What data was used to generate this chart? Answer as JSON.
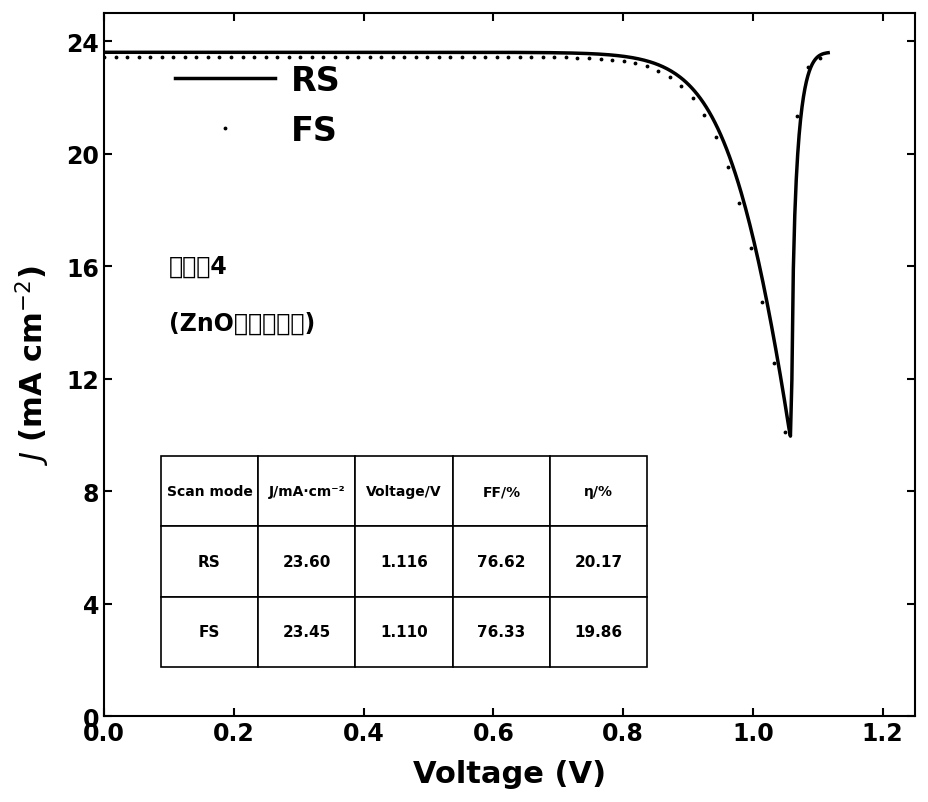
{
  "title": "",
  "xlabel": "Voltage (V)",
  "xlim": [
    0.0,
    1.25
  ],
  "ylim": [
    0,
    25
  ],
  "yticks": [
    0,
    4,
    8,
    12,
    16,
    20,
    24
  ],
  "xticks": [
    0.0,
    0.2,
    0.4,
    0.6,
    0.8,
    1.0,
    1.2
  ],
  "RS_Jsc": 23.6,
  "RS_Voc": 1.116,
  "RS_FF": 76.62,
  "RS_eta": 20.17,
  "FS_Jsc": 23.45,
  "FS_Voc": 1.11,
  "FS_FF": 76.33,
  "FS_eta": 19.86,
  "annotation_line1": "实施入4",
  "annotation_line2": "(ZnO经硫脺处理)",
  "bg_color": "#ffffff",
  "line_color": "#000000",
  "table_col_labels": [
    "Scan mode",
    "J/mA·cm⁻²",
    "Voltage/V",
    "FF/%",
    "η/%"
  ],
  "table_row1": [
    "RS",
    "23.60",
    "1.116",
    "76.62",
    "20.17"
  ],
  "table_row2": [
    "FS",
    "23.45",
    "1.110",
    "76.33",
    "19.86"
  ]
}
